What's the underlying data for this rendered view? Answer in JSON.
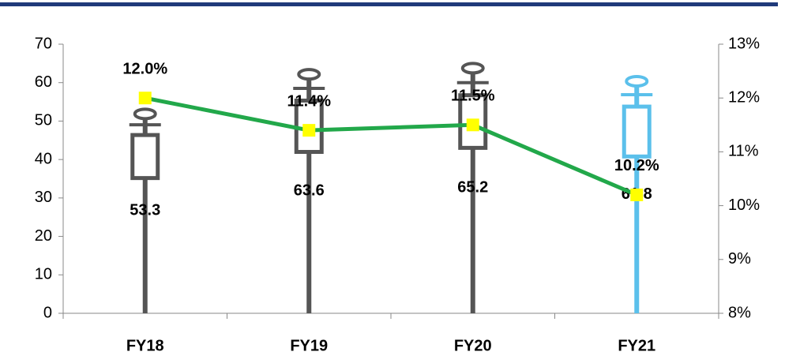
{
  "chart_data": {
    "type": "bar",
    "categories": [
      "FY18",
      "FY19",
      "FY20",
      "FY21"
    ],
    "series": [
      {
        "type": "bar",
        "colors": [
          "#555555",
          "#555555",
          "#555555",
          "#5bc0eb"
        ],
        "values": [
          53.3,
          63.6,
          65.2,
          61.8
        ]
      },
      {
        "type": "line",
        "axis": "y2",
        "color": "#22a84a",
        "marker_color": "#ffff00",
        "values": [
          12.0,
          11.4,
          11.5,
          10.2
        ],
        "value_labels": [
          "12.0%",
          "11.4%",
          "11.5%",
          "10.2%"
        ]
      }
    ],
    "ylim": [
      0,
      70
    ],
    "yticks": [
      0,
      10,
      20,
      30,
      40,
      50,
      60,
      70
    ],
    "y2lim": [
      8,
      13
    ],
    "y2ticks": [
      {
        "value": 8,
        "label": "8%"
      },
      {
        "value": 9,
        "label": "9%"
      },
      {
        "value": 10,
        "label": "10%"
      },
      {
        "value": 11,
        "label": "11%"
      },
      {
        "value": 12,
        "label": "12%"
      },
      {
        "value": 13,
        "label": "13%"
      }
    ]
  }
}
